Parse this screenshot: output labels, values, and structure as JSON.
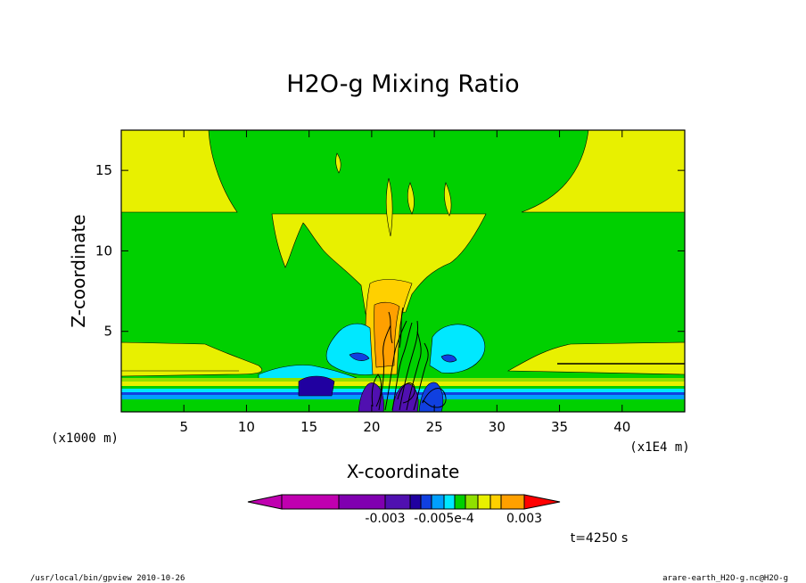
{
  "chart_data": {
    "type": "heatmap",
    "title": "H2O-g Mixing Ratio",
    "xlabel": "X-coordinate",
    "ylabel": "Z-coordinate",
    "x_unit": "(x1E4 m)",
    "y_unit": "(x1000 m)",
    "xlim": [
      0,
      45
    ],
    "ylim": [
      0,
      17.5
    ],
    "x_ticks": [
      5,
      10,
      15,
      20,
      25,
      30,
      35,
      40
    ],
    "y_ticks": [
      5,
      10,
      15
    ],
    "colorbar": {
      "colors": [
        "#c000b0",
        "#8000b0",
        "#5010b0",
        "#2000a0",
        "#1040e0",
        "#00a0ff",
        "#00e8ff",
        "#00d000",
        "#90e000",
        "#e8f000",
        "#ffd000",
        "#ffa000",
        "#ff7000",
        "#ff0000"
      ],
      "tick_labels": [
        "-0.003",
        "-0.005e-4",
        "0.003"
      ],
      "extend": "both"
    },
    "time_label": "t=4250 s",
    "footer_left": "/usr/local/bin/gpview  2010-10-26",
    "footer_right": "arare-earth_H2O-g.nc@H2O-g"
  }
}
